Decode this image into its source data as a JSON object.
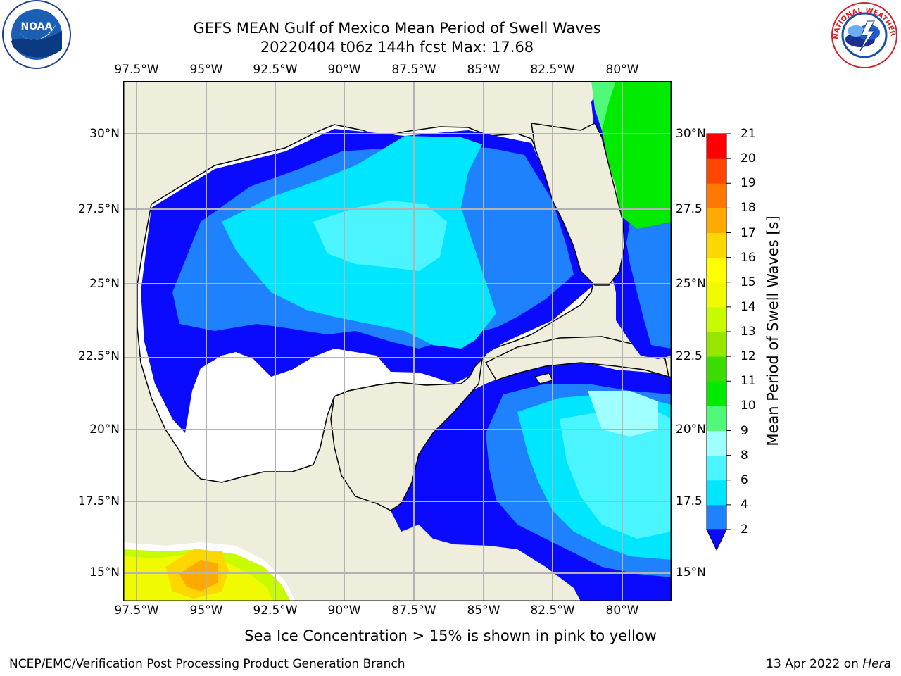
{
  "header": {
    "title": "GEFS MEAN Gulf of Mexico Mean Period of Swell Waves",
    "subtitle": "20220404 t06z 144h fcst   Max: 17.68"
  },
  "logos": {
    "noaa_text": "NOAA",
    "nws_text": "NATIONAL WEATHER SERVICE"
  },
  "map": {
    "lon_labels": [
      "97.5°W",
      "95°W",
      "92.5°W",
      "90°W",
      "87.5°W",
      "85°W",
      "82.5°W",
      "80°W"
    ],
    "lat_labels_left": [
      "30°N",
      "27.5°N",
      "25°N",
      "22.5°N",
      "20°N",
      "17.5°N",
      "15°N"
    ],
    "lat_labels_right": [
      "30°N",
      "27.5",
      "25°N",
      "22.5",
      "20°N",
      "17.5",
      "15°N"
    ],
    "colors": {
      "land": "#efeedc",
      "no_data": "#ffffff",
      "grid": "#b3b3b3"
    }
  },
  "colorbar": {
    "label": "Mean Period of Swell Waves [s]",
    "ticks": [
      "2",
      "4",
      "6",
      "8",
      "9",
      "10",
      "11",
      "12",
      "13",
      "14",
      "15",
      "16",
      "17",
      "18",
      "19",
      "20",
      "21"
    ],
    "colors": [
      "#0a0aff",
      "#1e82ff",
      "#00e6ff",
      "#4bf5ff",
      "#a0ffff",
      "#50fa78",
      "#00eb00",
      "#3cdc00",
      "#96e600",
      "#c8fa00",
      "#f0fa00",
      "#ffff00",
      "#ffd700",
      "#ffaa00",
      "#ff7800",
      "#ff4600",
      "#ff0000"
    ]
  },
  "caption": "Sea Ice Concentration > 15% is shown in pink to yellow",
  "footer": {
    "left": "NCEP/EMC/Verification Post Processing Product Generation Branch",
    "right_date": "13 Apr 2022 on ",
    "right_machine": "Hera"
  }
}
